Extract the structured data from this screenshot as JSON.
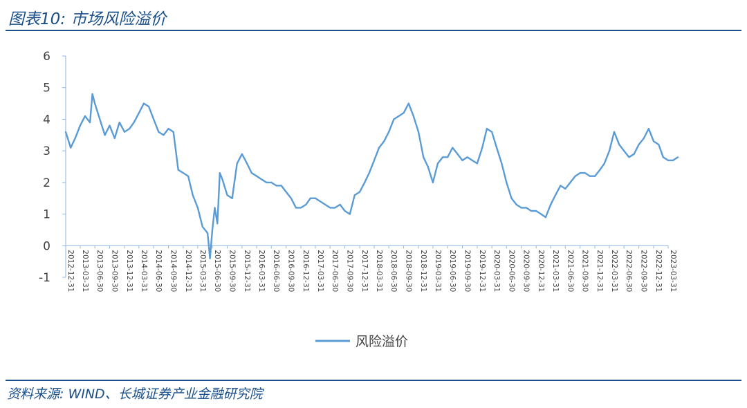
{
  "header": {
    "title": "图表10:  市场风险溢价"
  },
  "footer": {
    "source": "资料来源:  WIND、长城证券产业金融研究院"
  },
  "colors": {
    "series": "#5b9bd5",
    "accent": "#1a4f8a",
    "axis_text": "#404040"
  },
  "chart_data": {
    "type": "line",
    "title": "",
    "xlabel": "",
    "ylabel": "",
    "ylim": [
      -1,
      6
    ],
    "yticks": [
      -1,
      0,
      1,
      2,
      3,
      4,
      5,
      6
    ],
    "xticks": [
      "2012-12-31",
      "2013-03-31",
      "2013-06-30",
      "2013-09-30",
      "2013-12-31",
      "2014-03-31",
      "2014-06-30",
      "2014-09-30",
      "2014-12-31",
      "2015-03-31",
      "2015-06-30",
      "2015-09-30",
      "2015-12-31",
      "2016-03-31",
      "2016-06-30",
      "2016-09-30",
      "2016-12-31",
      "2017-03-31",
      "2017-06-30",
      "2017-09-30",
      "2017-12-31",
      "2018-03-31",
      "2018-06-30",
      "2018-09-30",
      "2018-12-31",
      "2019-03-31",
      "2019-06-30",
      "2019-09-30",
      "2019-12-31",
      "2020-03-31",
      "2020-06-30",
      "2020-09-30",
      "2020-12-31",
      "2021-03-31",
      "2021-06-30",
      "2021-09-30",
      "2021-12-31",
      "2022-03-31",
      "2022-06-30",
      "2022-09-30",
      "2022-12-31",
      "2023-03-31"
    ],
    "legend": "bottom",
    "grid": false,
    "series": [
      {
        "name": "风险溢价",
        "x": [
          "2012-12-31",
          "2013-01-31",
          "2013-02-28",
          "2013-03-31",
          "2013-04-30",
          "2013-05-31",
          "2013-06-15",
          "2013-06-30",
          "2013-07-31",
          "2013-08-31",
          "2013-09-30",
          "2013-10-31",
          "2013-11-30",
          "2013-12-31",
          "2014-01-31",
          "2014-02-28",
          "2014-03-31",
          "2014-04-30",
          "2014-05-31",
          "2014-06-30",
          "2014-07-31",
          "2014-08-31",
          "2014-09-30",
          "2014-10-31",
          "2014-11-30",
          "2014-12-31",
          "2015-01-31",
          "2015-02-28",
          "2015-03-31",
          "2015-04-30",
          "2015-05-31",
          "2015-06-15",
          "2015-06-30",
          "2015-07-15",
          "2015-07-31",
          "2015-08-15",
          "2015-08-31",
          "2015-09-30",
          "2015-10-31",
          "2015-11-30",
          "2015-12-31",
          "2016-01-31",
          "2016-02-29",
          "2016-03-31",
          "2016-04-30",
          "2016-05-31",
          "2016-06-30",
          "2016-07-31",
          "2016-08-31",
          "2016-09-30",
          "2016-10-31",
          "2016-11-30",
          "2016-12-31",
          "2017-01-31",
          "2017-02-28",
          "2017-03-31",
          "2017-04-30",
          "2017-05-31",
          "2017-06-30",
          "2017-07-31",
          "2017-08-31",
          "2017-09-30",
          "2017-10-31",
          "2017-11-30",
          "2017-12-31",
          "2018-01-31",
          "2018-02-28",
          "2018-03-31",
          "2018-04-30",
          "2018-05-31",
          "2018-06-30",
          "2018-07-31",
          "2018-08-31",
          "2018-09-30",
          "2018-10-31",
          "2018-11-30",
          "2018-12-31",
          "2019-01-31",
          "2019-02-28",
          "2019-03-31",
          "2019-04-30",
          "2019-05-31",
          "2019-06-30",
          "2019-07-31",
          "2019-08-31",
          "2019-09-30",
          "2019-10-31",
          "2019-11-30",
          "2019-12-31",
          "2020-01-31",
          "2020-02-29",
          "2020-03-31",
          "2020-04-30",
          "2020-05-31",
          "2020-06-30",
          "2020-07-31",
          "2020-08-31",
          "2020-09-30",
          "2020-10-31",
          "2020-11-30",
          "2020-12-31",
          "2021-01-31",
          "2021-02-28",
          "2021-03-31",
          "2021-04-30",
          "2021-05-31",
          "2021-06-30",
          "2021-07-31",
          "2021-08-31",
          "2021-09-30",
          "2021-10-31",
          "2021-11-30",
          "2021-12-31",
          "2022-01-31",
          "2022-02-28",
          "2022-03-31",
          "2022-04-30",
          "2022-05-31",
          "2022-06-30",
          "2022-07-31",
          "2022-08-31",
          "2022-09-30",
          "2022-10-31",
          "2022-11-30",
          "2022-12-31",
          "2023-01-31",
          "2023-02-28",
          "2023-03-31",
          "2023-04-30",
          "2023-05-31"
        ],
        "values": [
          3.6,
          3.1,
          3.4,
          3.8,
          4.1,
          3.9,
          4.8,
          4.5,
          4.0,
          3.5,
          3.8,
          3.4,
          3.9,
          3.6,
          3.7,
          3.9,
          4.2,
          4.5,
          4.4,
          4.0,
          3.6,
          3.5,
          3.7,
          3.6,
          2.4,
          2.3,
          2.2,
          1.6,
          1.2,
          0.6,
          0.4,
          -0.4,
          0.5,
          1.2,
          0.7,
          2.3,
          2.1,
          1.6,
          1.5,
          2.6,
          2.9,
          2.6,
          2.3,
          2.2,
          2.1,
          2.0,
          2.0,
          1.9,
          1.9,
          1.7,
          1.5,
          1.2,
          1.2,
          1.3,
          1.5,
          1.5,
          1.4,
          1.3,
          1.2,
          1.2,
          1.3,
          1.1,
          1.0,
          1.6,
          1.7,
          2.0,
          2.3,
          2.7,
          3.1,
          3.3,
          3.6,
          4.0,
          4.1,
          4.2,
          4.5,
          4.1,
          3.6,
          2.8,
          2.5,
          2.0,
          2.6,
          2.8,
          2.8,
          3.1,
          2.9,
          2.7,
          2.8,
          2.7,
          2.6,
          3.1,
          3.7,
          3.6,
          3.1,
          2.6,
          2.0,
          1.5,
          1.3,
          1.2,
          1.2,
          1.1,
          1.1,
          1.0,
          0.9,
          1.3,
          1.6,
          1.9,
          1.8,
          2.0,
          2.2,
          2.3,
          2.3,
          2.2,
          2.2,
          2.4,
          2.6,
          3.0,
          3.6,
          3.2,
          3.0,
          2.8,
          2.9,
          3.2,
          3.4,
          3.7,
          3.3,
          3.2,
          2.8,
          2.7,
          2.7,
          2.8
        ]
      }
    ]
  }
}
